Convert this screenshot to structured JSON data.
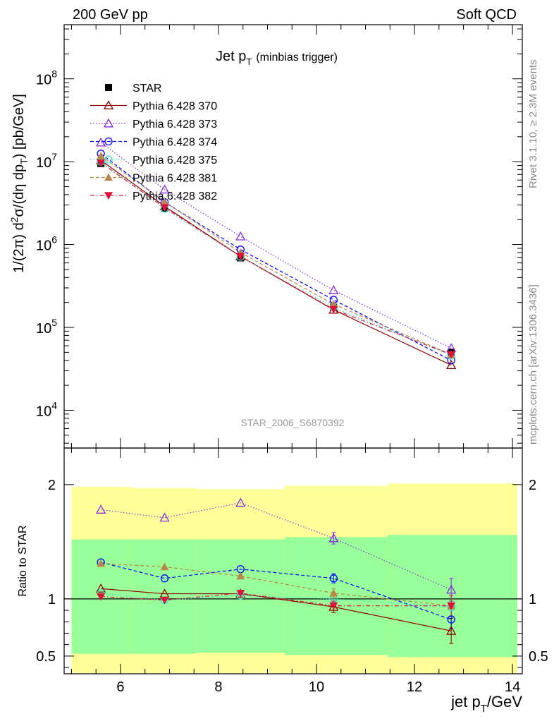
{
  "header": {
    "left": "200 GeV pp",
    "right": "Soft QCD"
  },
  "side_labels": {
    "rivet": "Rivet 3.1.10, ≥ 2.3M events",
    "mcplots": "mcplots.cern.ch [arXiv:1306.3436]"
  },
  "chart_data": [
    {
      "type": "scatter",
      "title_main": "Jet p",
      "title_sub": "T",
      "title_suffix": "(minbias trigger)",
      "ylabel": "1/(2π) d²σ/(dη dpₜ) [pb/GeV]",
      "ylabel_parts": [
        "1/(2π) d",
        "2",
        "σ/(dη dp",
        "T",
        ") [pb/GeV]"
      ],
      "y_scale": "log",
      "xlim": [
        4.85,
        14.2
      ],
      "ylim": [
        3500,
        450000000
      ],
      "y_ticks": [
        {
          "value": 10000,
          "base": "10",
          "exp": "4"
        },
        {
          "value": 100000,
          "base": "10",
          "exp": "5"
        },
        {
          "value": 1000000,
          "base": "10",
          "exp": "6"
        },
        {
          "value": 10000000,
          "base": "10",
          "exp": "7"
        },
        {
          "value": 100000000,
          "base": "10",
          "exp": "8"
        }
      ],
      "watermark": "STAR_2006_S6870392",
      "legend_position": "top-left",
      "x": [
        5.6,
        6.9,
        8.45,
        10.35,
        12.75
      ],
      "series": [
        {
          "name": "STAR",
          "color": "#000000",
          "marker": "square-filled",
          "line": "none",
          "values": [
            9500000,
            2750000,
            690000,
            175000,
            50000
          ]
        },
        {
          "name": "Pythia 6.428 370",
          "color": "#8b0000",
          "marker": "triangle-open",
          "line": "solid",
          "values": [
            10400000,
            2900000,
            720000,
            163000,
            35000
          ]
        },
        {
          "name": "Pythia 6.428 373",
          "color": "#8a2be2",
          "marker": "triangle-open",
          "line": "dotted",
          "values": [
            17000000,
            4600000,
            1250000,
            280000,
            56000
          ]
        },
        {
          "name": "Pythia 6.428 374",
          "color": "#0000ff",
          "marker": "circle-open",
          "line": "dashed",
          "values": [
            12500000,
            3250000,
            870000,
            215000,
            40000
          ]
        },
        {
          "name": "Pythia 6.428 375",
          "color": "#40e0d0",
          "marker": "circle-open",
          "line": "dotted",
          "values": [
            10000000,
            2700000,
            710000,
            175000,
            46000
          ]
        },
        {
          "name": "Pythia 6.428 381",
          "color": "#b8864b",
          "marker": "triangle-filled",
          "line": "dashed",
          "values": [
            11700000,
            3300000,
            800000,
            190000,
            47000
          ]
        },
        {
          "name": "Pythia 6.428 382",
          "color": "#dc143c",
          "marker": "triangle-down-filled",
          "line": "dashdot",
          "values": [
            9700000,
            2800000,
            720000,
            165000,
            47000
          ]
        }
      ]
    },
    {
      "type": "scatter",
      "ylabel": "Ratio to STAR",
      "xlabel": "jet p",
      "xlabel_sub": "T",
      "xlabel_suffix": "/GeV",
      "xlim": [
        4.85,
        14.2
      ],
      "ylim": [
        0.345,
        2.32
      ],
      "x_ticks": [
        6,
        8,
        10,
        12,
        14
      ],
      "x_tick_labels": [
        "6",
        "8",
        "10",
        "12",
        "14"
      ],
      "y_ticks": [
        0.5,
        1,
        2
      ],
      "y_tick_labels": [
        "0.5",
        "1",
        "2"
      ],
      "bands": {
        "x_edges": [
          5.0,
          6.25,
          7.55,
          9.35,
          11.45,
          14.1
        ],
        "yellow_low": [
          0.35,
          0.35,
          0.35,
          0.35,
          0.35
        ],
        "yellow_high": [
          1.98,
          1.97,
          1.96,
          1.99,
          2.01
        ],
        "green_low": [
          0.52,
          0.52,
          0.53,
          0.51,
          0.49
        ],
        "green_high": [
          1.52,
          1.52,
          1.52,
          1.54,
          1.56
        ],
        "yellow_color": "#ffff99",
        "green_color": "#99ff99"
      },
      "reference_line": 1,
      "x": [
        5.6,
        6.9,
        8.45,
        10.35,
        12.75
      ],
      "series": [
        {
          "name": "Pythia 6.428 370",
          "values": [
            1.09,
            1.045,
            1.045,
            0.93,
            0.72
          ],
          "err": [
            0,
            0,
            0,
            0.05,
            0.11
          ]
        },
        {
          "name": "Pythia 6.428 373",
          "values": [
            1.78,
            1.71,
            1.84,
            1.53,
            1.08
          ],
          "err": [
            0,
            0,
            0,
            0.05,
            0.1
          ]
        },
        {
          "name": "Pythia 6.428 374",
          "values": [
            1.32,
            1.18,
            1.26,
            1.18,
            0.82
          ],
          "err": [
            0,
            0,
            0,
            0.04,
            0.08
          ]
        },
        {
          "name": "Pythia 6.428 375",
          "values": [
            1.05,
            0.99,
            1.03,
            1.0,
            0.93
          ],
          "err": [
            0,
            0,
            0,
            0.03,
            0.08
          ]
        },
        {
          "name": "Pythia 6.428 381",
          "values": [
            1.31,
            1.28,
            1.2,
            1.05,
            0.94
          ],
          "err": [
            0,
            0,
            0,
            0.04,
            0.09
          ]
        },
        {
          "name": "Pythia 6.428 382",
          "values": [
            1.02,
            0.99,
            1.05,
            0.94,
            0.94
          ],
          "err": [
            0,
            0,
            0,
            0.04,
            0.09
          ]
        }
      ]
    }
  ]
}
